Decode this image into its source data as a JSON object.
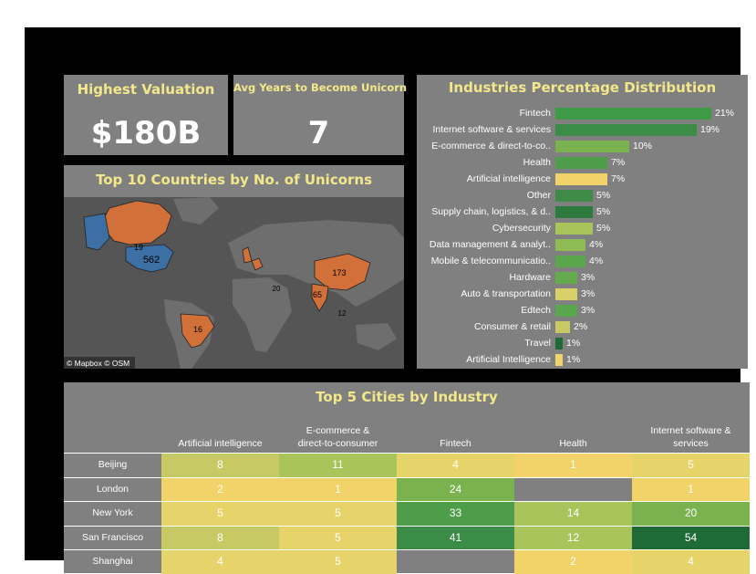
{
  "kpi_highest": {
    "title": "Highest Valuation",
    "value": "$180B"
  },
  "kpi_avg": {
    "title": "Avg Years to Become Unicorn",
    "value": "7"
  },
  "map": {
    "title": "Top 10 Countries by No. of Unicorns",
    "attribution": "© Mapbox © OSM",
    "labels": {
      "usa": "562",
      "canada": "19",
      "brazil": "16",
      "china": "173",
      "india": "65",
      "europe": "20",
      "sea": "12"
    },
    "colors": {
      "highlight": "#d2703a",
      "usa": "#3c6fa3",
      "land": "#6e6e6e",
      "water": "#555555"
    }
  },
  "industries": {
    "title": "Industries Percentage Distribution",
    "items": [
      {
        "label": "Fintech",
        "pct": "21%",
        "value": 21,
        "color": "#3f9a47"
      },
      {
        "label": "Internet software & services",
        "pct": "19%",
        "value": 19,
        "color": "#3b8c46"
      },
      {
        "label": "E-commerce & direct-to-co..",
        "pct": "10%",
        "value": 10,
        "color": "#7ab24f"
      },
      {
        "label": "Health",
        "pct": "7%",
        "value": 7,
        "color": "#4e9d4a"
      },
      {
        "label": "Artificial intelligence",
        "pct": "7%",
        "value": 7,
        "color": "#f2d36a"
      },
      {
        "label": "Other",
        "pct": "5%",
        "value": 5,
        "color": "#3e8a46"
      },
      {
        "label": "Supply chain, logistics, & d..",
        "pct": "5%",
        "value": 5,
        "color": "#2c7a3e"
      },
      {
        "label": "Cybersecurity",
        "pct": "5%",
        "value": 5,
        "color": "#a8c45a"
      },
      {
        "label": "Data management & analyt..",
        "pct": "4%",
        "value": 4,
        "color": "#8fbb55"
      },
      {
        "label": "Mobile & telecommunicatio..",
        "pct": "4%",
        "value": 4,
        "color": "#5aa64c"
      },
      {
        "label": "Hardware",
        "pct": "3%",
        "value": 3,
        "color": "#64ab4e"
      },
      {
        "label": "Auto & transportation",
        "pct": "3%",
        "value": 3,
        "color": "#d9d06a"
      },
      {
        "label": "Edtech",
        "pct": "3%",
        "value": 3,
        "color": "#5aa64c"
      },
      {
        "label": "Consumer & retail",
        "pct": "2%",
        "value": 2,
        "color": "#c6c964"
      },
      {
        "label": "Travel",
        "pct": "1%",
        "value": 1,
        "color": "#1f6b38"
      },
      {
        "label": "Artificial Intelligence",
        "pct": "1%",
        "value": 1,
        "color": "#f0d46c"
      }
    ]
  },
  "cities": {
    "title": "Top 5 Cities by Industry",
    "columns": [
      {
        "line1": "",
        "line2": "Artificial intelligence"
      },
      {
        "line1": "E-commerce &",
        "line2": "direct-to-consumer"
      },
      {
        "line1": "",
        "line2": "Fintech"
      },
      {
        "line1": "",
        "line2": "Health"
      },
      {
        "line1": "Internet software &",
        "line2": "services"
      }
    ],
    "rows": [
      {
        "city": "Beijing",
        "values": [
          "8",
          "11",
          "4",
          "1",
          "5"
        ],
        "colors": [
          "#c6c964",
          "#a8c45a",
          "#e6d46b",
          "#f2d36a",
          "#e6d46b"
        ]
      },
      {
        "city": "London",
        "values": [
          "2",
          "1",
          "24",
          "",
          "1"
        ],
        "colors": [
          "#f2d36a",
          "#f2d36a",
          "#7ab24f",
          "",
          "#f2d36a"
        ]
      },
      {
        "city": "New York",
        "values": [
          "5",
          "5",
          "33",
          "14",
          "20"
        ],
        "colors": [
          "#e6d46b",
          "#e6d46b",
          "#4e9d4a",
          "#a8c45a",
          "#7ab24f"
        ]
      },
      {
        "city": "San Francisco",
        "values": [
          "8",
          "5",
          "41",
          "12",
          "54"
        ],
        "colors": [
          "#c6c964",
          "#e6d46b",
          "#3b8c46",
          "#a8c45a",
          "#1f6b38"
        ]
      },
      {
        "city": "Shanghai",
        "values": [
          "4",
          "5",
          "",
          "2",
          "4"
        ],
        "colors": [
          "#e6d46b",
          "#e6d46b",
          "",
          "#f2d36a",
          "#e6d46b"
        ]
      }
    ]
  }
}
